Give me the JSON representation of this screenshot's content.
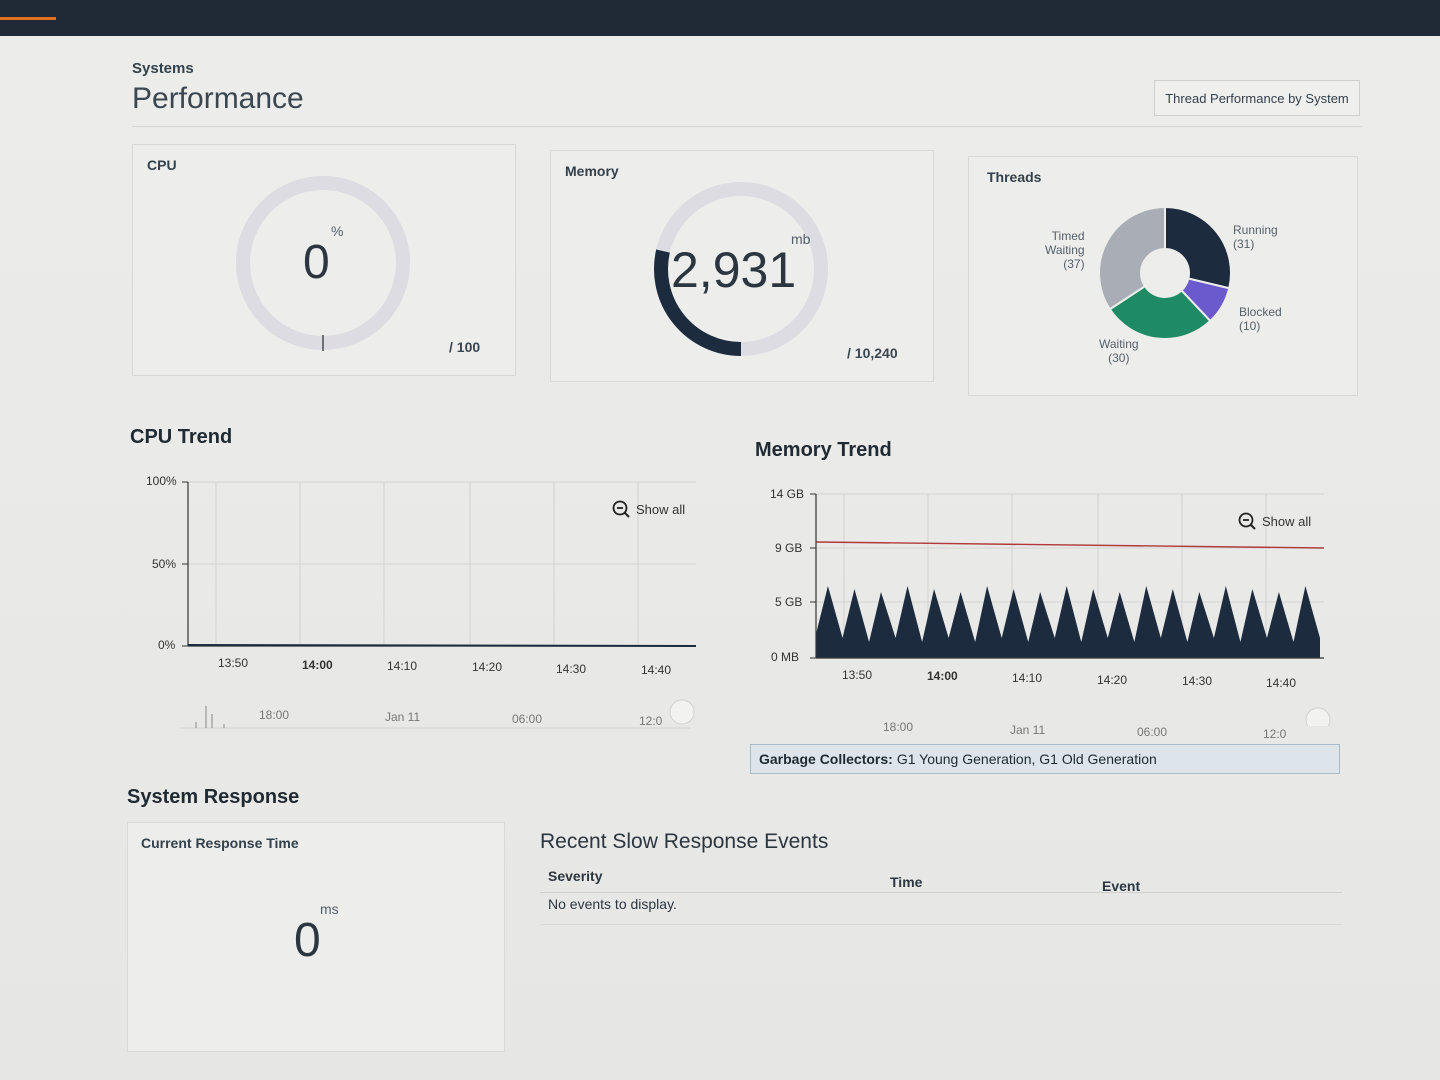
{
  "header": {
    "breadcrumb": "Systems",
    "title": "Performance",
    "thread_button": "Thread Performance by System"
  },
  "cpu": {
    "label": "CPU",
    "value": "0",
    "unit": "%",
    "max": "/ 100",
    "fraction": 0
  },
  "memory": {
    "label": "Memory",
    "value": "2,931",
    "unit": "mb",
    "max": "/ 10,240",
    "fraction": 0.286
  },
  "threads": {
    "label": "Threads",
    "slices": [
      {
        "name": "Running",
        "count": 31,
        "color": "#1d2b3f"
      },
      {
        "name": "Blocked",
        "count": 10,
        "color": "#6a5acd"
      },
      {
        "name": "Waiting",
        "count": 30,
        "color": "#1f8a66"
      },
      {
        "name": "Timed Waiting",
        "count": 37,
        "color": "#a9aeb6"
      }
    ],
    "labels": {
      "running": "Running",
      "running_count": "(31)",
      "blocked": "Blocked",
      "blocked_count": "(10)",
      "waiting": "Waiting",
      "waiting_count": "(30)",
      "timed_1": "Timed",
      "timed_2": "Waiting",
      "timed_count": "(37)"
    }
  },
  "cpu_trend": {
    "title": "CPU Trend",
    "show_all": "Show all",
    "y_ticks": [
      "100%",
      "50%",
      "0%"
    ],
    "x_ticks": [
      "13:50",
      "14:00",
      "14:10",
      "14:20",
      "14:30",
      "14:40"
    ],
    "nav_ticks": [
      "18:00",
      "Jan 11",
      "06:00",
      "12:0"
    ]
  },
  "memory_trend": {
    "title": "Memory Trend",
    "show_all": "Show all",
    "y_ticks": [
      "14 GB",
      "9 GB",
      "5 GB",
      "0 MB"
    ],
    "x_ticks": [
      "13:50",
      "14:00",
      "14:10",
      "14:20",
      "14:30",
      "14:40"
    ],
    "nav_ticks": [
      "18:00",
      "Jan 11",
      "06:00",
      "12:0"
    ]
  },
  "gc": {
    "label": "Garbage Collectors:",
    "value": "G1 Young Generation, G1 Old Generation"
  },
  "system_response": {
    "title": "System Response",
    "card_label": "Current Response Time",
    "value": "0",
    "unit": "ms"
  },
  "slow_events": {
    "title": "Recent Slow Response Events",
    "columns": [
      "Severity",
      "Time",
      "Event"
    ],
    "empty": "No events to display."
  },
  "colors": {
    "navy": "#1d2b3f",
    "threshold": "#b03a3a",
    "gauge_track": "#dcdce2"
  }
}
